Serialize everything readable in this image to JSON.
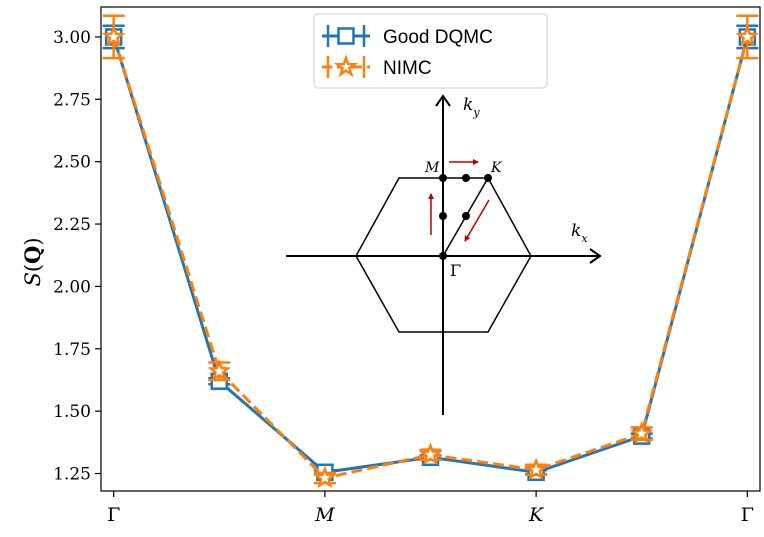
{
  "chart_data": {
    "type": "line",
    "title": "",
    "xlabel": "",
    "ylabel": "S(Q)",
    "ylim": [
      1.18,
      3.12
    ],
    "yticks": [
      1.25,
      1.5,
      1.75,
      2.0,
      2.25,
      2.5,
      2.75,
      3.0
    ],
    "ytick_labels": [
      "1.25",
      "1.50",
      "1.75",
      "2.00",
      "2.25",
      "2.50",
      "2.75",
      "3.00"
    ],
    "x": [
      0,
      1,
      2,
      3,
      4,
      5,
      6
    ],
    "xlim": [
      -0.12,
      6.12
    ],
    "xticks": [
      {
        "pos": 0,
        "label": "Γ",
        "italic": false
      },
      {
        "pos": 2,
        "label": "M",
        "italic": true
      },
      {
        "pos": 4,
        "label": "K",
        "italic": true
      },
      {
        "pos": 6,
        "label": "Γ",
        "italic": false
      }
    ],
    "series": [
      {
        "name": "Good DQMC",
        "color": "#1f77b4",
        "marker": "square",
        "dashed": false,
        "values": [
          3.0,
          1.62,
          1.255,
          1.315,
          1.255,
          1.4,
          3.0
        ],
        "errors": [
          0.045,
          0.012,
          0.008,
          0.008,
          0.008,
          0.01,
          0.045
        ]
      },
      {
        "name": "NIMC",
        "color": "#ff7f0e",
        "marker": "star",
        "dashed": true,
        "values": [
          3.0,
          1.66,
          1.232,
          1.325,
          1.265,
          1.41,
          3.0
        ],
        "errors": [
          0.085,
          0.035,
          0.02,
          0.02,
          0.02,
          0.025,
          0.085
        ]
      }
    ],
    "legend": {
      "position": "top-center",
      "entries": [
        "Good DQMC",
        "NIMC"
      ]
    },
    "grid": false,
    "inset": {
      "description": "hexagonal Brillouin zone",
      "axis_labels": {
        "kx_main": "k",
        "kx_sub": "x",
        "ky_main": "k",
        "ky_sub": "y"
      },
      "points": {
        "gamma": "Γ",
        "m": "M",
        "k": "K"
      }
    }
  }
}
